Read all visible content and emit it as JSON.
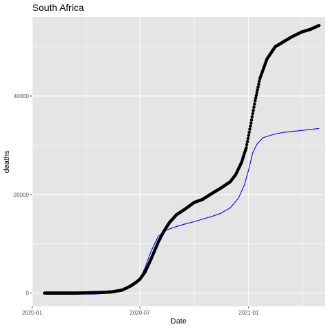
{
  "chart_data": {
    "type": "scatter",
    "title": "South Africa",
    "xlabel": "Date",
    "ylabel": "deaths",
    "x_ticks": [
      "2020-01",
      "2020-07",
      "2021-01"
    ],
    "y_ticks": [
      0,
      20000,
      40000
    ],
    "xlim": [
      "2020-01-01",
      "2021-05-10"
    ],
    "ylim": [
      -2700,
      56000
    ],
    "grid": true,
    "legend": "none",
    "colors": {
      "panel": "#e5e5e5",
      "grid": "#ffffff",
      "points": "#000000",
      "line": "#0000ff"
    },
    "series": [
      {
        "kind": "points",
        "x": [
          "2020-01-22",
          "2020-02-15",
          "2020-03-15",
          "2020-04-15",
          "2020-05-01",
          "2020-05-15",
          "2020-06-01",
          "2020-06-15",
          "2020-06-25",
          "2020-07-01",
          "2020-07-10",
          "2020-07-20",
          "2020-08-01",
          "2020-08-10",
          "2020-08-20",
          "2020-09-01",
          "2020-09-15",
          "2020-10-01",
          "2020-10-15",
          "2020-11-01",
          "2020-11-15",
          "2020-12-01",
          "2020-12-10",
          "2020-12-20",
          "2020-12-28",
          "2021-01-05",
          "2021-01-12",
          "2021-01-20",
          "2021-02-01",
          "2021-02-15",
          "2021-03-01",
          "2021-03-15",
          "2021-04-01",
          "2021-04-15",
          "2021-04-30"
        ],
        "y": [
          0,
          0,
          0,
          100,
          150,
          250,
          600,
          1400,
          2200,
          2800,
          4300,
          6900,
          10300,
          12400,
          14300,
          15900,
          17000,
          18400,
          19000,
          20300,
          21300,
          22600,
          24000,
          26500,
          29500,
          34500,
          39000,
          43500,
          47500,
          50000,
          51000,
          52000,
          53000,
          53500,
          54300
        ]
      },
      {
        "kind": "line",
        "x": [
          "2020-01-22",
          "2020-03-01",
          "2020-04-15",
          "2020-05-15",
          "2020-06-01",
          "2020-06-20",
          "2020-07-01",
          "2020-07-10",
          "2020-07-20",
          "2020-08-01",
          "2020-08-15",
          "2020-09-01",
          "2020-09-15",
          "2020-10-01",
          "2020-10-15",
          "2020-11-01",
          "2020-11-15",
          "2020-12-01",
          "2020-12-15",
          "2020-12-25",
          "2021-01-01",
          "2021-01-08",
          "2021-01-15",
          "2021-01-25",
          "2021-02-01",
          "2021-02-15",
          "2021-03-01",
          "2021-03-15",
          "2021-04-01",
          "2021-04-15",
          "2021-04-30"
        ],
        "y": [
          -250,
          -250,
          -200,
          0,
          400,
          1500,
          2800,
          5200,
          8500,
          11500,
          12800,
          13500,
          14000,
          14500,
          15000,
          15600,
          16200,
          17300,
          19300,
          22000,
          25000,
          28500,
          30200,
          31500,
          31800,
          32300,
          32600,
          32800,
          33000,
          33200,
          33400
        ]
      }
    ]
  }
}
